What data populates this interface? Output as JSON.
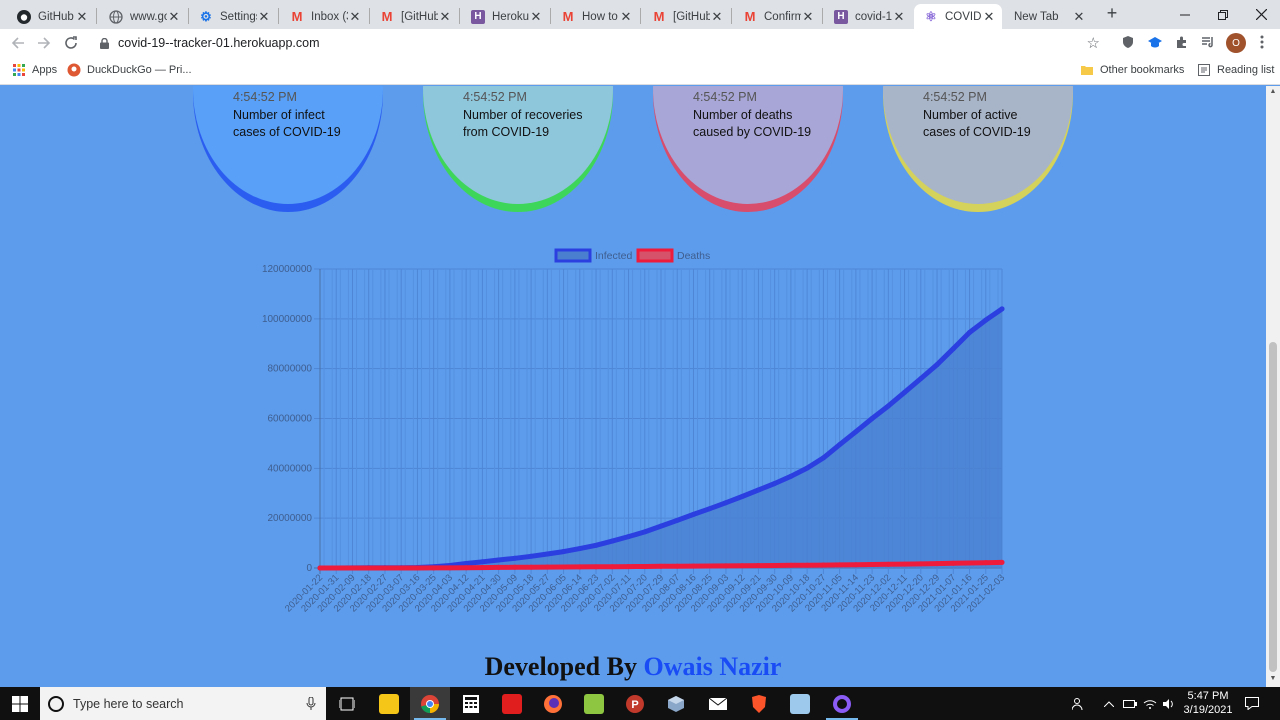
{
  "browser": {
    "tabs": [
      {
        "title": "GitHub",
        "icon": "github-icon",
        "icon_color": "#24292e",
        "active": false
      },
      {
        "title": "www.go",
        "icon": "globe-icon",
        "icon_color": "#5f6368",
        "active": false
      },
      {
        "title": "Settings",
        "icon": "gear-icon",
        "icon_color": "#1a73e8",
        "active": false
      },
      {
        "title": "Inbox (3",
        "icon": "gmail-icon",
        "icon_color": "#ea4335",
        "active": false
      },
      {
        "title": "[GitHub]",
        "icon": "gmail-icon",
        "icon_color": "#ea4335",
        "active": false
      },
      {
        "title": "Heroku",
        "icon": "heroku-icon",
        "icon_color": "#79589f",
        "active": false
      },
      {
        "title": "How to",
        "icon": "gmail-icon",
        "icon_color": "#ea4335",
        "active": false
      },
      {
        "title": "[GitHub]",
        "icon": "gmail-icon",
        "icon_color": "#ea4335",
        "active": false
      },
      {
        "title": "Confirm",
        "icon": "gmail-icon",
        "icon_color": "#ea4335",
        "active": false
      },
      {
        "title": "covid-1",
        "icon": "heroku-icon",
        "icon_color": "#79589f",
        "active": false
      },
      {
        "title": "COVID-",
        "icon": "react-icon",
        "icon_color": "#8a6bd8",
        "active": true
      },
      {
        "title": "New Tab",
        "icon": "",
        "icon_color": "",
        "active": false
      }
    ],
    "url": "covid-19--tracker-01.herokuapp.com",
    "profile_initial": "O",
    "bookmarks": [
      {
        "label": "Apps",
        "icon": "apps-grid-icon"
      },
      {
        "label": "DuckDuckGo — Pri...",
        "icon": "duckduckgo-icon"
      }
    ],
    "other_bookmarks": "Other bookmarks",
    "reading_list": "Reading list"
  },
  "cards": [
    {
      "time": "4:54:52 PM",
      "description": "Number of infect cases of COVID-19",
      "fill": "#58a0f8",
      "edge": "#2b5ef0"
    },
    {
      "time": "4:54:52 PM",
      "description": "Number of recoveries from COVID-19",
      "fill": "#8ec6dc",
      "edge": "#3ed65a"
    },
    {
      "time": "4:54:52 PM",
      "description": "Number of deaths caused by COVID-19",
      "fill": "#a8a6d6",
      "edge": "#d84c6c"
    },
    {
      "time": "4:54:52 PM",
      "description": "Number of active cases of COVID-19",
      "fill": "#a8b4c8",
      "edge": "#d4d25a"
    }
  ],
  "chart_data": {
    "type": "line",
    "title": "",
    "xlabel": "",
    "ylabel": "",
    "ylim": [
      0,
      120000000
    ],
    "y_ticks": [
      "0",
      "20000000",
      "40000000",
      "60000000",
      "80000000",
      "100000000",
      "120000000"
    ],
    "x_tick_labels": [
      "2020-01-22",
      "2020-01-31",
      "2020-02-09",
      "2020-02-18",
      "2020-02-27",
      "2020-03-07",
      "2020-03-16",
      "2020-03-25",
      "2020-04-03",
      "2020-04-12",
      "2020-04-21",
      "2020-04-30",
      "2020-05-09",
      "2020-05-18",
      "2020-05-27",
      "2020-06-05",
      "2020-06-14",
      "2020-06-23",
      "2020-07-02",
      "2020-07-11",
      "2020-07-20",
      "2020-07-29",
      "2020-08-07",
      "2020-08-16",
      "2020-08-25",
      "2020-09-03",
      "2020-09-12",
      "2020-09-21",
      "2020-09-30",
      "2020-10-09",
      "2020-10-18",
      "2020-10-27",
      "2020-11-05",
      "2020-11-14",
      "2020-11-23",
      "2020-12-02",
      "2020-12-11",
      "2020-12-20",
      "2020-12-29",
      "2021-01-07",
      "2021-01-16",
      "2021-01-25",
      "2021-02-03"
    ],
    "legend": "top",
    "grid": true,
    "series": [
      {
        "name": "Infected",
        "color": "#2b3fe0",
        "fill": "#4a7fd0",
        "values": [
          500,
          10000,
          40000,
          80000,
          90000,
          110000,
          190000,
          500000,
          1000000,
          1800000,
          2500000,
          3200000,
          3900000,
          4700000,
          5600000,
          6600000,
          7800000,
          9100000,
          10800000,
          12600000,
          14500000,
          16800000,
          19100000,
          21500000,
          23800000,
          26200000,
          28700000,
          31300000,
          33900000,
          36800000,
          40100000,
          44200000,
          49500000,
          54700000,
          60000000,
          65000000,
          70500000,
          76000000,
          81600000,
          88000000,
          94500000,
          99500000,
          104000000
        ]
      },
      {
        "name": "Deaths",
        "color": "#ee1c3a",
        "fill": "none",
        "values": [
          17,
          213,
          900,
          2100,
          2800,
          3600,
          7000,
          22000,
          53000,
          114000,
          178000,
          228000,
          276000,
          317000,
          352000,
          391000,
          431000,
          473000,
          517000,
          562000,
          611000,
          663000,
          717000,
          770000,
          816000,
          862000,
          908000,
          956000,
          1011000,
          1067000,
          1123000,
          1180000,
          1251000,
          1320000,
          1392000,
          1475000,
          1567000,
          1661000,
          1756000,
          1879000,
          2021000,
          2147000,
          2250000
        ]
      }
    ]
  },
  "footer": {
    "prefix": "Developed By",
    "name": "Owais Nazir"
  },
  "taskbar": {
    "search_placeholder": "Type here to search",
    "time": "5:47 PM",
    "date": "3/19/2021"
  }
}
